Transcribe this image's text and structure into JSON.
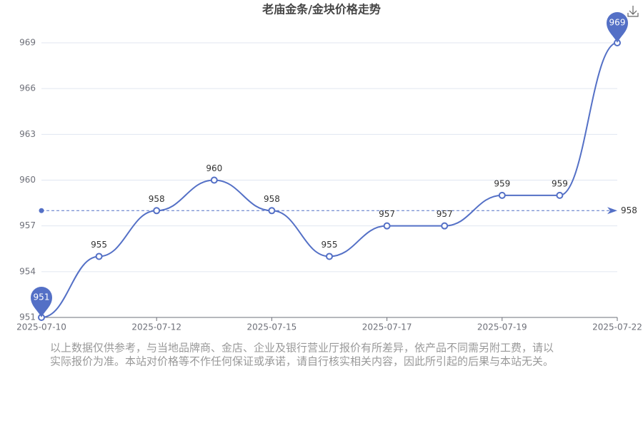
{
  "chart_data": {
    "type": "line",
    "title": "老庙金条/金块价格走势",
    "categories": [
      "2025-07-10",
      null,
      "2025-07-12",
      null,
      "2025-07-15",
      null,
      "2025-07-17",
      null,
      "2025-07-19",
      null,
      "2025-07-22"
    ],
    "series": [
      {
        "color": "#5470c6",
        "values": [
          951,
          955,
          958,
          960,
          958,
          955,
          957,
          957,
          959,
          959,
          969
        ]
      }
    ],
    "ylim": [
      951,
      969
    ],
    "yticks": [
      951,
      954,
      957,
      960,
      963,
      966,
      969
    ],
    "grid": true,
    "average_line": 958,
    "note": [
      "以上数据仅供参考，与当地品牌商、金店、企业及银行营业厅报价有所差异，依产品不同需另附工费，请以",
      "实际报价为准。本站对价格等不作任何保证或承诺，请自行核实相关内容，因此所引起的后果与本站无关。"
    ]
  }
}
